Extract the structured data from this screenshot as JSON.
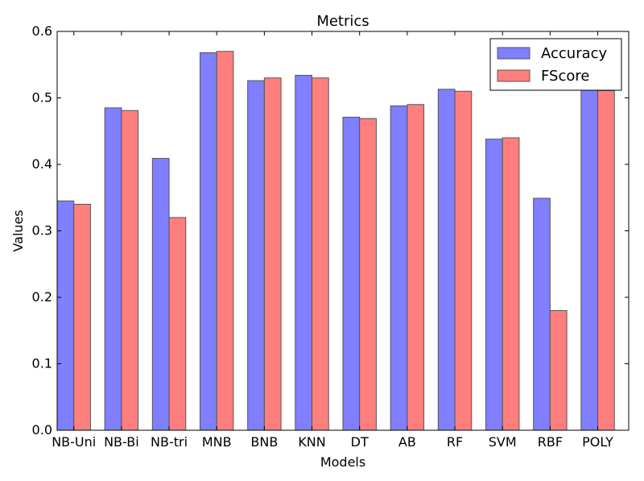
{
  "chart_data": {
    "type": "bar",
    "title": "Metrics",
    "xlabel": "Models",
    "ylabel": "Values",
    "categories": [
      "NB-Uni",
      "NB-Bi",
      "NB-tri",
      "MNB",
      "BNB",
      "KNN",
      "DT",
      "AB",
      "RF",
      "SVM",
      "RBF",
      "POLY"
    ],
    "series": [
      {
        "name": "Accuracy",
        "color": "#7f7fff",
        "values": [
          0.345,
          0.485,
          0.409,
          0.568,
          0.526,
          0.534,
          0.471,
          0.488,
          0.513,
          0.438,
          0.349,
          0.513
        ]
      },
      {
        "name": "FScore",
        "color": "#ff7f7f",
        "values": [
          0.34,
          0.481,
          0.32,
          0.57,
          0.53,
          0.53,
          0.469,
          0.49,
          0.51,
          0.44,
          0.18,
          0.511
        ]
      }
    ],
    "ylim": [
      0,
      0.6
    ],
    "yticks": [
      "0.0",
      "0.1",
      "0.2",
      "0.3",
      "0.4",
      "0.5",
      "0.6"
    ],
    "ytick_values": [
      0.0,
      0.1,
      0.2,
      0.3,
      0.4,
      0.5,
      0.6
    ],
    "grid": false,
    "legend_position": "top-right"
  }
}
